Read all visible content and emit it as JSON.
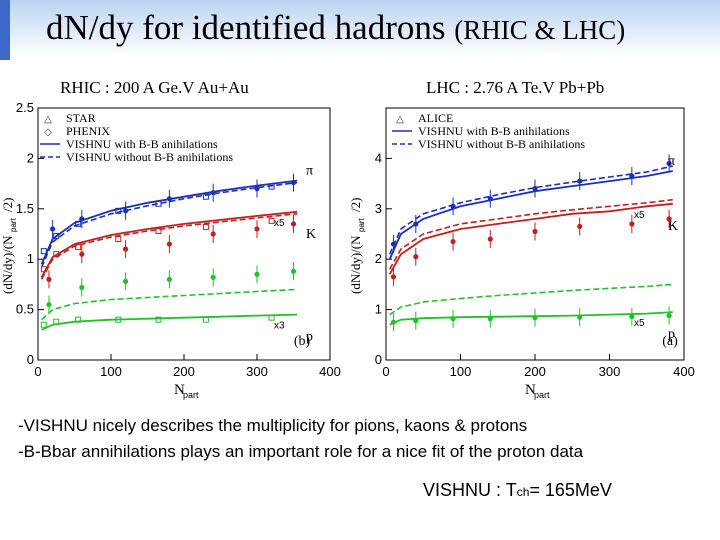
{
  "slide": {
    "title_main": "d",
    "title_full": "d",
    "title": "dN/dy for identified hadrons",
    "title_suffix": "(RHIC & LHC)",
    "note1": "-VISHNU nicely describes the multiplicity for pions, kaons & protons",
    "note2": "-B-Bbar annihilations plays an important role for a nice fit of the proton data",
    "tch_prefix": "VISHNU : T",
    "tch_sub": "ch",
    "tch_value": "= 165MeV"
  },
  "colors": {
    "pion": "#1b2fb8",
    "kaon": "#c22020",
    "proton": "#22c12a",
    "accent": "#3d68c9"
  },
  "chart_data": [
    {
      "id": "rhic",
      "panel_label": "RHIC : 200 A Ge.V Au+Au",
      "type": "line",
      "xlim": [
        0,
        400
      ],
      "ylim": [
        0,
        2.5
      ],
      "x_ticks": [
        0,
        100,
        200,
        300,
        400
      ],
      "y_ticks": [
        0,
        0.5,
        1,
        1.5,
        2,
        2.5
      ],
      "x_tick_labels": [
        "0",
        "100",
        "200",
        "300",
        "400"
      ],
      "y_tick_labels": [
        "0",
        "0.5",
        "1",
        "1.5",
        "2",
        "2.5"
      ],
      "xlabel_main": "N",
      "xlabel_sub": "part",
      "ylabel": "(dN/dy)/(N",
      "ylabel_sub": "part",
      "ylabel_end": "/2)",
      "panel_tag": "(b)",
      "legend": [
        "STAR",
        "PHENIX",
        "VISHNU with B-B anihilations",
        "VISHNU without B-B anihilations"
      ],
      "species": [
        {
          "name": "π",
          "scale": "",
          "color_key": "pion",
          "with": [
            [
              5,
              0.95
            ],
            [
              20,
              1.2
            ],
            [
              50,
              1.36
            ],
            [
              100,
              1.48
            ],
            [
              150,
              1.56
            ],
            [
              200,
              1.62
            ],
            [
              250,
              1.68
            ],
            [
              300,
              1.73
            ],
            [
              355,
              1.78
            ]
          ],
          "without": [
            [
              5,
              0.92
            ],
            [
              20,
              1.17
            ],
            [
              50,
              1.33
            ],
            [
              100,
              1.45
            ],
            [
              150,
              1.53
            ],
            [
              200,
              1.6
            ],
            [
              250,
              1.66
            ],
            [
              300,
              1.71
            ],
            [
              355,
              1.76
            ]
          ],
          "data_star": [
            [
              20,
              1.3
            ],
            [
              60,
              1.4
            ],
            [
              120,
              1.48
            ],
            [
              180,
              1.6
            ],
            [
              240,
              1.66
            ],
            [
              300,
              1.7
            ],
            [
              350,
              1.76
            ]
          ],
          "data_phenix": [
            [
              8,
              1.08
            ],
            [
              25,
              1.23
            ],
            [
              55,
              1.35
            ],
            [
              110,
              1.48
            ],
            [
              165,
              1.55
            ],
            [
              230,
              1.62
            ],
            [
              320,
              1.72
            ]
          ]
        },
        {
          "name": "K",
          "scale": "x5",
          "color_key": "kaon",
          "with": [
            [
              5,
              0.82
            ],
            [
              20,
              1.02
            ],
            [
              50,
              1.15
            ],
            [
              100,
              1.24
            ],
            [
              150,
              1.3
            ],
            [
              200,
              1.35
            ],
            [
              250,
              1.39
            ],
            [
              300,
              1.43
            ],
            [
              355,
              1.47
            ]
          ],
          "without": [
            [
              5,
              0.8
            ],
            [
              20,
              1.0
            ],
            [
              50,
              1.13
            ],
            [
              100,
              1.22
            ],
            [
              150,
              1.28
            ],
            [
              200,
              1.33
            ],
            [
              250,
              1.37
            ],
            [
              300,
              1.41
            ],
            [
              355,
              1.45
            ]
          ],
          "data_star": [
            [
              15,
              0.8
            ],
            [
              60,
              1.05
            ],
            [
              120,
              1.1
            ],
            [
              180,
              1.15
            ],
            [
              240,
              1.25
            ],
            [
              300,
              1.3
            ],
            [
              350,
              1.35
            ]
          ],
          "data_phenix": [
            [
              8,
              0.9
            ],
            [
              25,
              1.05
            ],
            [
              55,
              1.12
            ],
            [
              110,
              1.2
            ],
            [
              165,
              1.28
            ],
            [
              230,
              1.32
            ],
            [
              320,
              1.38
            ]
          ]
        },
        {
          "name": "p",
          "scale": "x3",
          "color_key": "proton",
          "with": [
            [
              5,
              0.3
            ],
            [
              20,
              0.35
            ],
            [
              50,
              0.38
            ],
            [
              100,
              0.4
            ],
            [
              150,
              0.41
            ],
            [
              200,
              0.42
            ],
            [
              250,
              0.43
            ],
            [
              300,
              0.44
            ],
            [
              355,
              0.45
            ]
          ],
          "without": [
            [
              5,
              0.4
            ],
            [
              20,
              0.5
            ],
            [
              50,
              0.56
            ],
            [
              100,
              0.6
            ],
            [
              150,
              0.62
            ],
            [
              200,
              0.64
            ],
            [
              250,
              0.66
            ],
            [
              300,
              0.68
            ],
            [
              355,
              0.7
            ]
          ],
          "data_star": [
            [
              15,
              0.55
            ],
            [
              60,
              0.72
            ],
            [
              120,
              0.78
            ],
            [
              180,
              0.8
            ],
            [
              240,
              0.82
            ],
            [
              300,
              0.85
            ],
            [
              350,
              0.88
            ]
          ],
          "data_phenix": [
            [
              8,
              0.35
            ],
            [
              25,
              0.38
            ],
            [
              55,
              0.4
            ],
            [
              110,
              0.4
            ],
            [
              165,
              0.4
            ],
            [
              230,
              0.4
            ],
            [
              320,
              0.42
            ]
          ]
        }
      ]
    },
    {
      "id": "lhc",
      "panel_label": "LHC : 2.76 A Te.V Pb+Pb",
      "type": "line",
      "xlim": [
        0,
        400
      ],
      "ylim": [
        0,
        5
      ],
      "x_ticks": [
        0,
        100,
        200,
        300,
        400
      ],
      "y_ticks": [
        0,
        1,
        2,
        3,
        4
      ],
      "x_tick_labels": [
        "0",
        "100",
        "200",
        "300",
        "400"
      ],
      "y_tick_labels": [
        "0",
        "1",
        "2",
        "3",
        "4"
      ],
      "xlabel_main": "N",
      "xlabel_sub": "part",
      "ylabel": "(dN/dy)/(N",
      "ylabel_sub": "part",
      "ylabel_end": "/2)",
      "panel_tag": "(a)",
      "legend": [
        "ALICE",
        "VISHNU with B-B anihilations",
        "VISHNU without B-B anihilations"
      ],
      "species": [
        {
          "name": "π",
          "scale": "",
          "color_key": "pion",
          "with": [
            [
              5,
              2.0
            ],
            [
              20,
              2.5
            ],
            [
              50,
              2.8
            ],
            [
              100,
              3.05
            ],
            [
              150,
              3.2
            ],
            [
              200,
              3.35
            ],
            [
              250,
              3.45
            ],
            [
              300,
              3.55
            ],
            [
              350,
              3.65
            ],
            [
              385,
              3.75
            ]
          ],
          "without": [
            [
              5,
              2.1
            ],
            [
              20,
              2.6
            ],
            [
              50,
              2.9
            ],
            [
              100,
              3.12
            ],
            [
              150,
              3.28
            ],
            [
              200,
              3.42
            ],
            [
              250,
              3.53
            ],
            [
              300,
              3.63
            ],
            [
              350,
              3.73
            ],
            [
              385,
              3.85
            ]
          ],
          "data_star": [
            [
              10,
              2.3
            ],
            [
              40,
              2.7
            ],
            [
              90,
              3.05
            ],
            [
              140,
              3.2
            ],
            [
              200,
              3.4
            ],
            [
              260,
              3.55
            ],
            [
              330,
              3.65
            ],
            [
              380,
              3.9
            ]
          ],
          "data_phenix": []
        },
        {
          "name": "K",
          "scale": "x5",
          "color_key": "kaon",
          "with": [
            [
              5,
              1.7
            ],
            [
              20,
              2.1
            ],
            [
              50,
              2.4
            ],
            [
              100,
              2.6
            ],
            [
              150,
              2.7
            ],
            [
              200,
              2.8
            ],
            [
              250,
              2.9
            ],
            [
              300,
              2.95
            ],
            [
              350,
              3.05
            ],
            [
              385,
              3.1
            ]
          ],
          "without": [
            [
              5,
              1.8
            ],
            [
              20,
              2.2
            ],
            [
              50,
              2.5
            ],
            [
              100,
              2.7
            ],
            [
              150,
              2.8
            ],
            [
              200,
              2.9
            ],
            [
              250,
              2.98
            ],
            [
              300,
              3.05
            ],
            [
              350,
              3.12
            ],
            [
              385,
              3.18
            ]
          ],
          "data_star": [
            [
              10,
              1.65
            ],
            [
              40,
              2.05
            ],
            [
              90,
              2.35
            ],
            [
              140,
              2.4
            ],
            [
              200,
              2.55
            ],
            [
              260,
              2.65
            ],
            [
              330,
              2.7
            ],
            [
              380,
              2.8
            ]
          ],
          "data_phenix": []
        },
        {
          "name": "p",
          "scale": "x5",
          "color_key": "proton",
          "with": [
            [
              5,
              0.7
            ],
            [
              20,
              0.8
            ],
            [
              50,
              0.83
            ],
            [
              100,
              0.85
            ],
            [
              150,
              0.86
            ],
            [
              200,
              0.87
            ],
            [
              250,
              0.88
            ],
            [
              300,
              0.9
            ],
            [
              350,
              0.92
            ],
            [
              385,
              0.95
            ]
          ],
          "without": [
            [
              5,
              0.9
            ],
            [
              20,
              1.05
            ],
            [
              50,
              1.15
            ],
            [
              100,
              1.22
            ],
            [
              150,
              1.28
            ],
            [
              200,
              1.33
            ],
            [
              250,
              1.38
            ],
            [
              300,
              1.42
            ],
            [
              350,
              1.46
            ],
            [
              385,
              1.5
            ]
          ],
          "data_star": [
            [
              10,
              0.75
            ],
            [
              40,
              0.78
            ],
            [
              90,
              0.82
            ],
            [
              140,
              0.82
            ],
            [
              200,
              0.84
            ],
            [
              260,
              0.85
            ],
            [
              330,
              0.86
            ],
            [
              380,
              0.88
            ]
          ],
          "data_phenix": []
        }
      ]
    }
  ]
}
